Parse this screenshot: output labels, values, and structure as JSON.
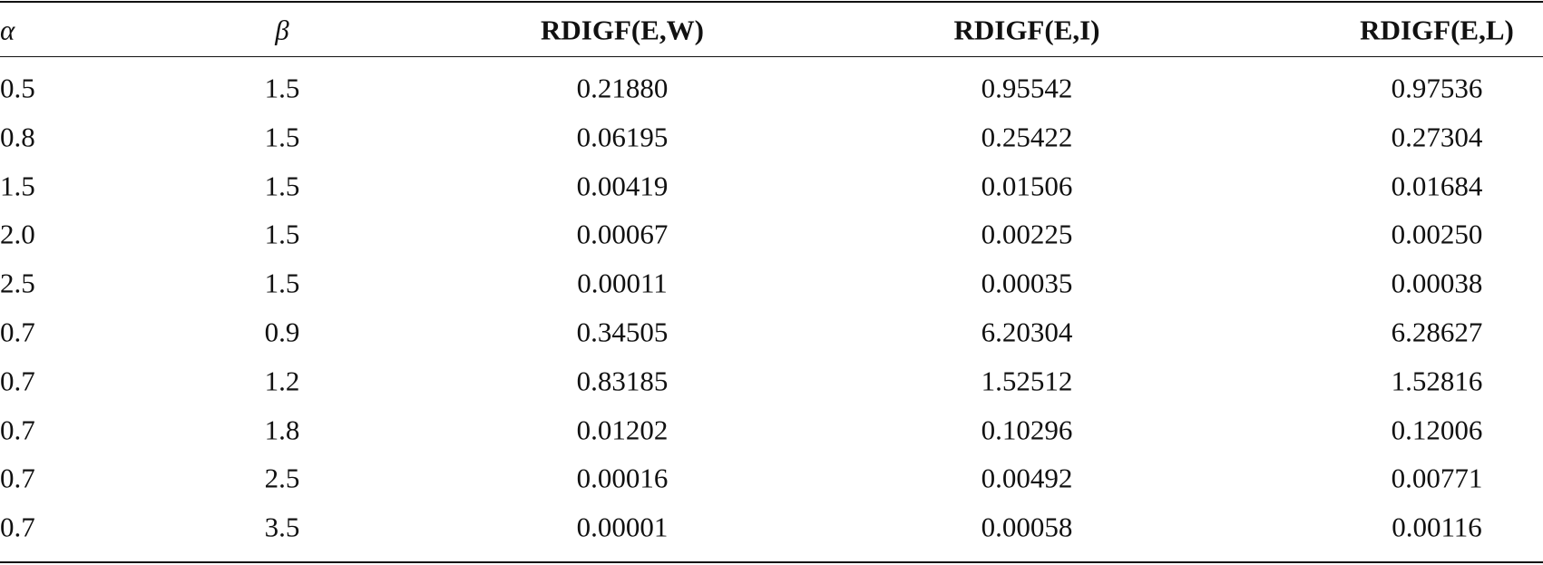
{
  "table": {
    "header": [
      "α",
      "β",
      "RDIGF(E,W)",
      "RDIGF(E,I)",
      "RDIGF(E,L)"
    ],
    "rows": [
      [
        "0.5",
        "1.5",
        "0.21880",
        "0.95542",
        "0.97536"
      ],
      [
        "0.8",
        "1.5",
        "0.06195",
        "0.25422",
        "0.27304"
      ],
      [
        "1.5",
        "1.5",
        "0.00419",
        "0.01506",
        "0.01684"
      ],
      [
        "2.0",
        "1.5",
        "0.00067",
        "0.00225",
        "0.00250"
      ],
      [
        "2.5",
        "1.5",
        "0.00011",
        "0.00035",
        "0.00038"
      ],
      [
        "0.7",
        "0.9",
        "0.34505",
        "6.20304",
        "6.28627"
      ],
      [
        "0.7",
        "1.2",
        "0.83185",
        "1.52512",
        "1.52816"
      ],
      [
        "0.7",
        "1.8",
        "0.01202",
        "0.10296",
        "0.12006"
      ],
      [
        "0.7",
        "2.5",
        "0.00016",
        "0.00492",
        "0.00771"
      ],
      [
        "0.7",
        "3.5",
        "0.00001",
        "0.00058",
        "0.00116"
      ]
    ]
  }
}
